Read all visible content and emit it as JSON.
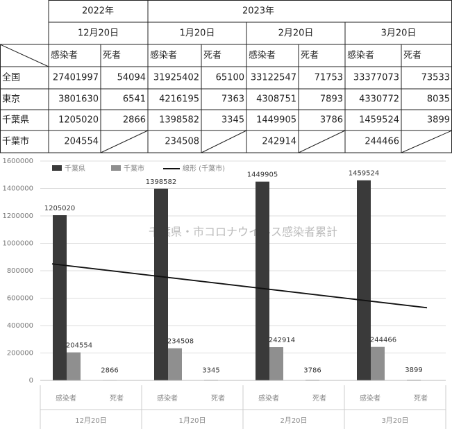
{
  "table": {
    "years": [
      "2022年",
      "2023年"
    ],
    "dates": [
      "12月20日",
      "1月20日",
      "2月20日",
      "3月20日"
    ],
    "subheaders": [
      "感染者",
      "死者",
      "感染者",
      "死者",
      "感染者",
      "死者",
      "感染者",
      "死者"
    ],
    "rows": [
      {
        "label": "全国",
        "values": [
          27401997,
          54094,
          31925402,
          65100,
          33122547,
          71753,
          33377073,
          73533
        ]
      },
      {
        "label": "東京",
        "values": [
          3801630,
          6541,
          4216195,
          7363,
          4308751,
          7893,
          4330772,
          8035
        ]
      },
      {
        "label": "千葉県",
        "values": [
          1205020,
          2866,
          1398582,
          3345,
          1449905,
          3786,
          1459524,
          3899
        ]
      },
      {
        "label": "千葉市",
        "values": [
          204554,
          null,
          234508,
          null,
          242914,
          null,
          244466,
          null
        ]
      }
    ]
  },
  "chart_data": {
    "type": "bar",
    "title": "千葉県・市コロナウイルス感染者累計",
    "groups": [
      "12月20日",
      "1月20日",
      "2月20日",
      "3月20日"
    ],
    "categories": [
      "感染者",
      "死者",
      "感染者",
      "死者",
      "感染者",
      "死者",
      "感染者",
      "死者"
    ],
    "series": [
      {
        "name": "千葉県",
        "color": "#3a3a3a",
        "values": [
          1205020,
          2866,
          1398582,
          3345,
          1449905,
          3786,
          1459524,
          3899
        ]
      },
      {
        "name": "千葉市",
        "color": "#8f8f8f",
        "values": [
          204554,
          null,
          234508,
          null,
          242914,
          null,
          244466,
          null
        ]
      }
    ],
    "trend": {
      "name": "線形 (千葉市)",
      "color": "#111111",
      "start": 850000,
      "end": 530000
    },
    "ylim": [
      0,
      1600000
    ],
    "yticks": [
      0,
      200000,
      400000,
      600000,
      800000,
      1000000,
      1200000,
      1400000,
      1600000
    ],
    "grid": true
  }
}
